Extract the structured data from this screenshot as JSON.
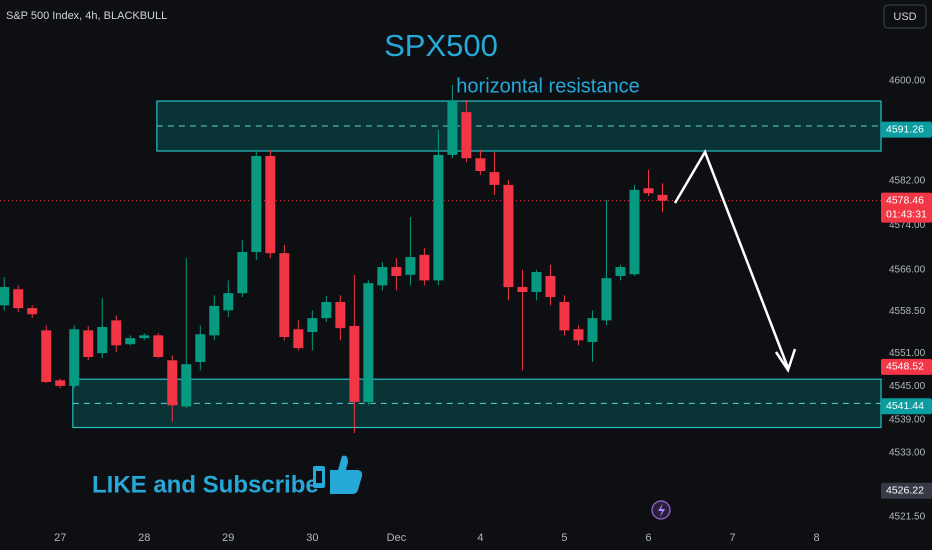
{
  "header": {
    "symbol": "S&P 500 Index, 4h, BLACKBULL",
    "currency": "USD"
  },
  "chart_data": {
    "type": "candlestick",
    "title": "SPX500",
    "annotations": [
      "horizontal resistance",
      "LIKE and Subscribe"
    ],
    "up_color": "#089981",
    "down_color": "#f23645",
    "xlim": [
      -0.3,
      62.6
    ],
    "ylim": [
      4519.5,
      4614.6
    ],
    "xticks": [
      {
        "value": 4,
        "label": "27"
      },
      {
        "value": 10,
        "label": "28"
      },
      {
        "value": 16,
        "label": "29"
      },
      {
        "value": 22,
        "label": "30"
      },
      {
        "value": 28,
        "label": "Dec"
      },
      {
        "value": 34,
        "label": "4"
      },
      {
        "value": 40,
        "label": "5"
      },
      {
        "value": 46,
        "label": "6"
      },
      {
        "value": 52,
        "label": "7"
      },
      {
        "value": 58,
        "label": "8"
      }
    ],
    "yticks": [
      {
        "value": 4600,
        "label": "4600.00"
      },
      {
        "value": 4582,
        "label": "4582.00"
      },
      {
        "value": 4574,
        "label": "4574.00"
      },
      {
        "value": 4566,
        "label": "4566.00"
      },
      {
        "value": 4558.5,
        "label": "4558.50"
      },
      {
        "value": 4551,
        "label": "4551.00"
      },
      {
        "value": 4545,
        "label": "4545.00"
      },
      {
        "value": 4539,
        "label": "4539.00"
      },
      {
        "value": 4533,
        "label": "4533.00"
      },
      {
        "value": 4521.5,
        "label": "4521.50"
      }
    ],
    "x": [
      0,
      1,
      2,
      3,
      4,
      5,
      6,
      7,
      8,
      9,
      10,
      11,
      12,
      13,
      14,
      15,
      16,
      17,
      18,
      19,
      20,
      21,
      22,
      23,
      24,
      25,
      26,
      27,
      28,
      29,
      30,
      31,
      32,
      33,
      34,
      35,
      36,
      37,
      38,
      39,
      40,
      41,
      42,
      43,
      44,
      45,
      46,
      47
    ],
    "open": [
      4559.6,
      4562.5,
      4559.1,
      4555.1,
      4546.1,
      4545.1,
      4555.1,
      4551.0,
      4556.9,
      4552.6,
      4553.7,
      4554.2,
      4549.7,
      4541.4,
      4549.4,
      4554.2,
      4558.7,
      4561.8,
      4569.2,
      4586.5,
      4569.0,
      4555.3,
      4554.8,
      4557.3,
      4560.2,
      4555.9,
      4542.2,
      4563.2,
      4566.5,
      4565.1,
      4568.7,
      4564.1,
      4586.7,
      4594.4,
      4586.1,
      4583.6,
      4581.3,
      4562.9,
      4562.0,
      4564.9,
      4560.2,
      4555.3,
      4553.0,
      4556.9,
      4564.9,
      4565.2,
      4580.7,
      4579.5
    ],
    "high": [
      4564.7,
      4563.2,
      4559.6,
      4556.0,
      4546.4,
      4556.0,
      4555.9,
      4560.9,
      4557.8,
      4554.2,
      4554.6,
      4554.6,
      4550.6,
      4568.1,
      4556.0,
      4561.4,
      4564.1,
      4571.4,
      4587.6,
      4587.6,
      4570.5,
      4556.9,
      4558.7,
      4561.3,
      4561.4,
      4565.1,
      4564.1,
      4567.4,
      4568.1,
      4575.5,
      4569.9,
      4591.2,
      4599.3,
      4596.6,
      4587.6,
      4587.2,
      4582.2,
      4566.0,
      4566.0,
      4566.9,
      4561.4,
      4556.0,
      4558.7,
      4578.6,
      4566.9,
      4581.3,
      4584.0,
      4581.6
    ],
    "low": [
      4558.7,
      4558.4,
      4557.3,
      4545.6,
      4544.7,
      4544.7,
      4549.7,
      4550.1,
      4551.2,
      4552.4,
      4553.3,
      4550.1,
      4538.6,
      4541.1,
      4547.9,
      4553.3,
      4557.5,
      4561.1,
      4567.8,
      4568.1,
      4553.3,
      4551.5,
      4551.5,
      4556.6,
      4553.3,
      4536.6,
      4541.6,
      4562.3,
      4562.3,
      4563.2,
      4563.2,
      4563.2,
      4586.1,
      4585.4,
      4583.1,
      4579.5,
      4560.5,
      4547.9,
      4560.5,
      4559.6,
      4554.2,
      4552.4,
      4549.4,
      4556.0,
      4564.1,
      4564.9,
      4579.3,
      4576.4
    ],
    "close": [
      4562.9,
      4559.1,
      4558.0,
      4545.8,
      4545.1,
      4555.3,
      4550.3,
      4555.7,
      4552.4,
      4553.7,
      4554.2,
      4550.3,
      4541.6,
      4549.0,
      4554.4,
      4559.5,
      4561.8,
      4569.2,
      4586.5,
      4569.0,
      4553.9,
      4551.9,
      4557.3,
      4560.2,
      4555.5,
      4542.2,
      4563.6,
      4566.5,
      4564.9,
      4568.3,
      4564.1,
      4586.7,
      4596.4,
      4586.1,
      4583.8,
      4581.3,
      4562.9,
      4562.0,
      4565.6,
      4561.1,
      4555.1,
      4553.3,
      4557.3,
      4564.5,
      4566.5,
      4580.4,
      4579.8,
      4578.46
    ],
    "zones": [
      {
        "start": 10.9,
        "high": 4596.4,
        "low": 4587.4
      },
      {
        "start": 4.9,
        "high": 4546.3,
        "low": 4537.6
      }
    ],
    "price_labels": [
      {
        "value": 4591.26,
        "color": "#0b9da0"
      },
      {
        "value": 4578.46,
        "color": "#f23645",
        "countdown": "01:43:31"
      },
      {
        "value": 4548.52,
        "color": "#f23645"
      },
      {
        "value": 4541.44,
        "color": "#0b9da0"
      },
      {
        "value": 4526.22,
        "color": "#363a45"
      }
    ]
  }
}
